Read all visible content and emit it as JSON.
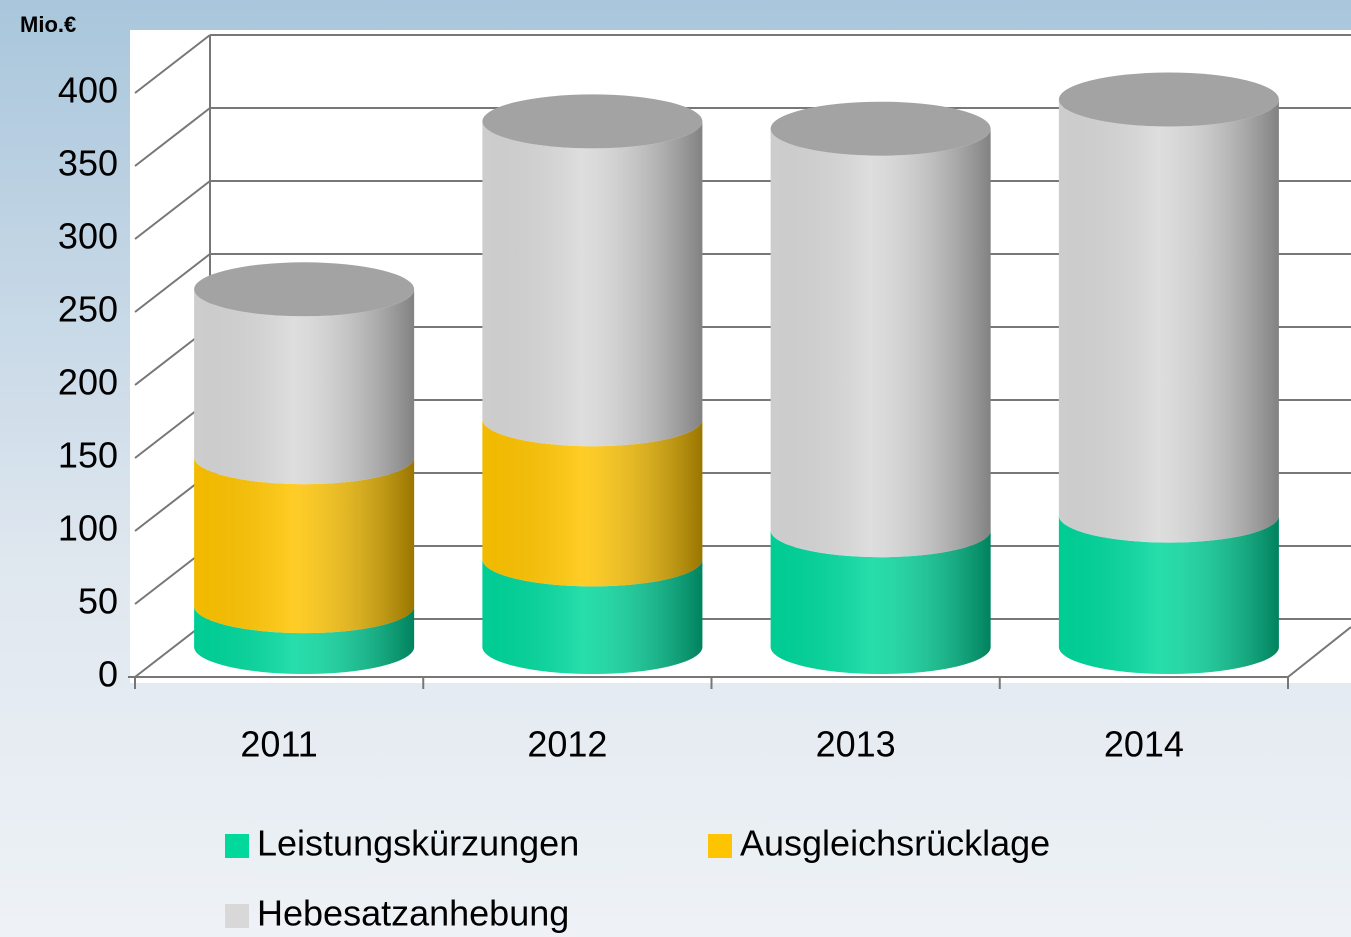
{
  "chart_data": {
    "type": "bar3d_cylinder_stacked",
    "y_axis_label": "Mio.€",
    "categories": [
      "2011",
      "2012",
      "2013",
      "2014"
    ],
    "series": [
      {
        "name": "Leistungskürzungen",
        "color": "#00d89c",
        "values": [
          28,
          60,
          80,
          90
        ]
      },
      {
        "name": "Ausgleichsrücklage",
        "color": "#ffc400",
        "values": [
          102,
          96,
          0,
          0
        ]
      },
      {
        "name": "Hebesatzanhebung",
        "color": "#d8d8d8",
        "values": [
          115,
          204,
          275,
          285
        ]
      }
    ],
    "ylim": [
      0,
      400
    ],
    "yticks": [
      0,
      50,
      100,
      150,
      200,
      250,
      300,
      350,
      400
    ],
    "grid": true
  }
}
